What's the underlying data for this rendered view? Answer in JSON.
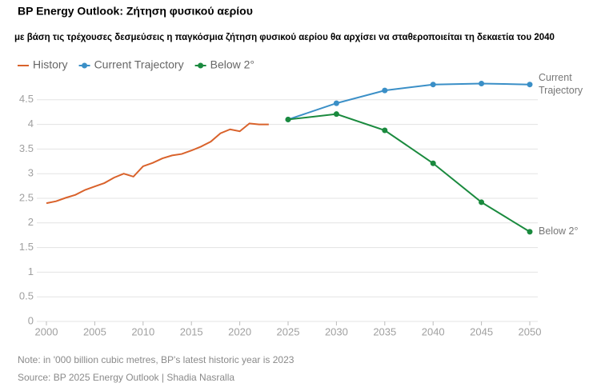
{
  "chart_data": {
    "type": "line",
    "title": "BP Energy Outlook: Ζήτηση φυσικού αερίου",
    "subtitle": "με βάση τις τρέχουσες δεσμεύσεις η παγκόσμια ζήτηση φυσικού αερίου θα αρχίσει να σταθεροποιείται τη δεκαετία του 2040",
    "note": "Note: in '000 billion cubic metres, BP's latest historic year is 2023",
    "source": "Source: BP 2025 Energy Outlook | Shadia Nasralla",
    "xlim": [
      2000,
      2050
    ],
    "xticks": [
      2000,
      2005,
      2010,
      2015,
      2020,
      2025,
      2030,
      2035,
      2040,
      2045,
      2050
    ],
    "ylim": [
      0,
      5
    ],
    "yticks": [
      0,
      0.5,
      1,
      1.5,
      2,
      2.5,
      3,
      3.5,
      4,
      4.5
    ],
    "grid": true,
    "legend": "top-left",
    "series": [
      {
        "name": "History",
        "color": "#d9622b",
        "markers": false,
        "x": [
          2000,
          2001,
          2002,
          2003,
          2004,
          2005,
          2006,
          2007,
          2008,
          2009,
          2010,
          2011,
          2012,
          2013,
          2014,
          2015,
          2016,
          2017,
          2018,
          2019,
          2020,
          2021,
          2022,
          2023
        ],
        "values": [
          2.4,
          2.44,
          2.51,
          2.57,
          2.67,
          2.74,
          2.81,
          2.92,
          3.0,
          2.94,
          3.15,
          3.22,
          3.31,
          3.37,
          3.4,
          3.47,
          3.55,
          3.65,
          3.82,
          3.9,
          3.86,
          4.02,
          4.0,
          4.0
        ]
      },
      {
        "name": "Current Trajectory",
        "color": "#3a8fc7",
        "markers": true,
        "end_label": [
          "Current",
          "Trajectory"
        ],
        "x": [
          2025,
          2030,
          2035,
          2040,
          2045,
          2050
        ],
        "values": [
          4.1,
          4.43,
          4.69,
          4.81,
          4.83,
          4.81
        ]
      },
      {
        "name": "Below 2°",
        "color": "#1a8a3e",
        "markers": true,
        "end_label": [
          "Below 2°"
        ],
        "x": [
          2025,
          2030,
          2035,
          2040,
          2045,
          2050
        ],
        "values": [
          4.1,
          4.21,
          3.88,
          3.21,
          2.42,
          1.82
        ]
      }
    ]
  }
}
